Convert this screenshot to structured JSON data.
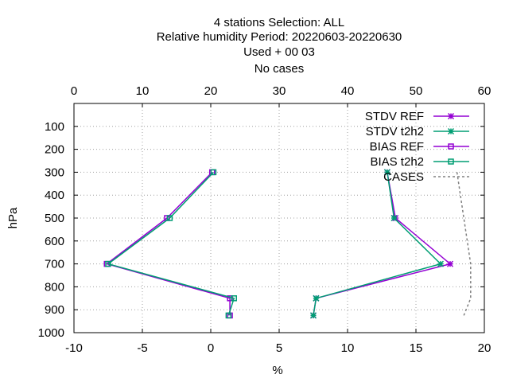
{
  "chart_data": {
    "type": "line",
    "title_lines": [
      "4 stations Selection: ALL",
      "Relative humidity  Period: 20220603-20220630",
      "Used   + 00 03",
      "No cases"
    ],
    "xlabel": "%",
    "ylabel": "hPa",
    "xlim": [
      -10,
      20
    ],
    "x2lim": [
      0,
      60
    ],
    "ylim": [
      1000,
      0
    ],
    "y_reversed": true,
    "x_ticks": [
      -10,
      -5,
      0,
      5,
      10,
      15,
      20
    ],
    "x_tick_labels": [
      "-10",
      "-5",
      "0",
      "5",
      "10",
      "15",
      "20"
    ],
    "x2_ticks": [
      0,
      10,
      20,
      30,
      40,
      50,
      60
    ],
    "x2_tick_labels": [
      "0",
      "10",
      "20",
      "30",
      "40",
      "50",
      "60"
    ],
    "y_ticks": [
      100,
      200,
      300,
      400,
      500,
      600,
      700,
      800,
      900,
      1000
    ],
    "y_tick_labels": [
      "100",
      "200",
      "300",
      "400",
      "500",
      "600",
      "700",
      "800",
      "900",
      "1000"
    ],
    "grid": true,
    "legend_position": "top-right",
    "series": [
      {
        "name": "STDV REF",
        "color": "#9400d3",
        "marker": "x-star",
        "axis": "x",
        "y": [
          300,
          500,
          700,
          850,
          925
        ],
        "x": [
          12.9,
          13.5,
          17.5,
          7.7,
          7.5
        ]
      },
      {
        "name": "STDV t2h2",
        "color": "#009e73",
        "marker": "x-star",
        "axis": "x",
        "y": [
          300,
          500,
          700,
          850,
          925
        ],
        "x": [
          12.9,
          13.4,
          16.8,
          7.7,
          7.5
        ]
      },
      {
        "name": "BIAS REF",
        "color": "#9400d3",
        "marker": "square",
        "axis": "x",
        "y": [
          300,
          500,
          700,
          850,
          925
        ],
        "x": [
          0.1,
          -3.2,
          -7.6,
          1.4,
          1.4
        ]
      },
      {
        "name": "BIAS t2h2",
        "color": "#009e73",
        "marker": "square",
        "axis": "x",
        "y": [
          300,
          500,
          700,
          850,
          925
        ],
        "x": [
          0.2,
          -3.0,
          -7.5,
          1.7,
          1.3
        ]
      },
      {
        "name": "CASES",
        "color": "#808080",
        "marker": "none",
        "dashed": true,
        "axis": "x2",
        "y": [
          300,
          500,
          700,
          850,
          925
        ],
        "x": [
          56,
          57,
          58,
          58,
          57
        ]
      }
    ]
  }
}
